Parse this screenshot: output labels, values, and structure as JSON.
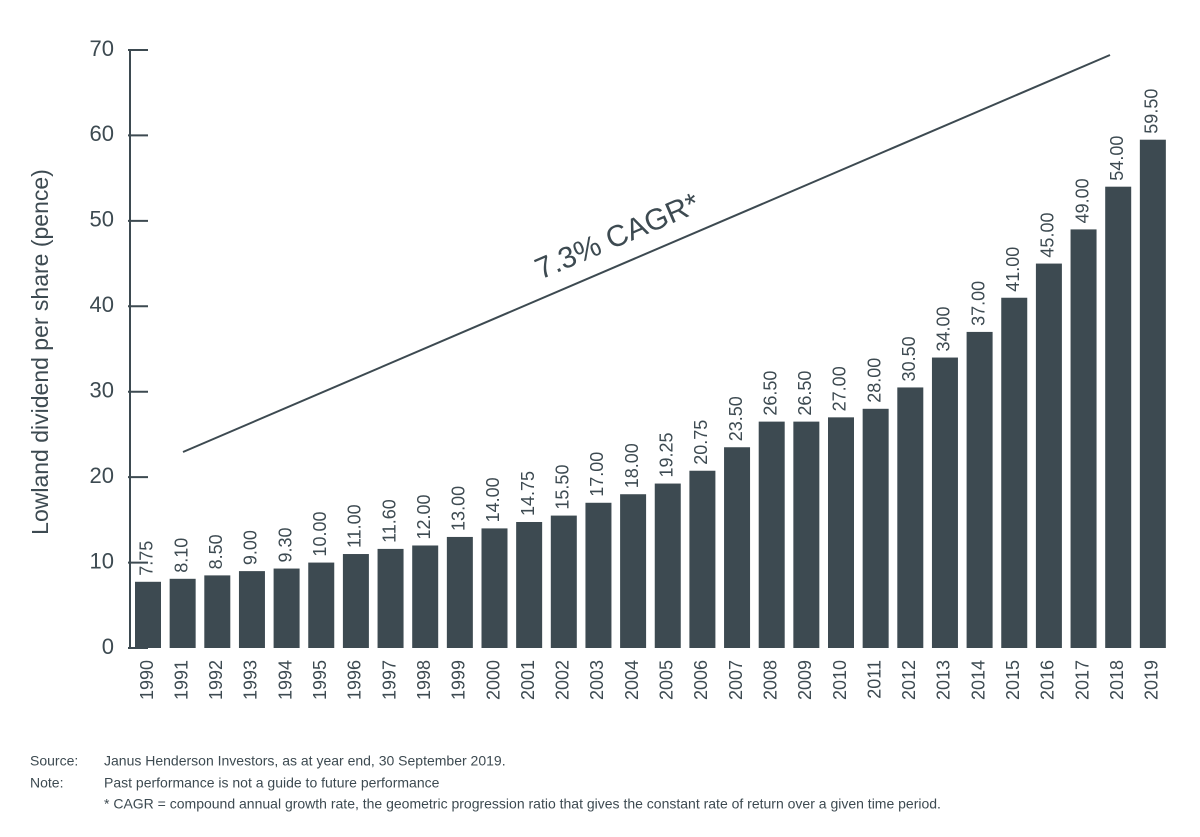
{
  "chart_data": {
    "type": "bar",
    "y_label": "Lowland dividend per share (pence)",
    "annotation": "7.3% CAGR*",
    "categories": [
      "1990",
      "1991",
      "1992",
      "1993",
      "1994",
      "1995",
      "1996",
      "1997",
      "1998",
      "1999",
      "2000",
      "2001",
      "2002",
      "2003",
      "2004",
      "2005",
      "2006",
      "2007",
      "2008",
      "2009",
      "2010",
      "2011",
      "2012",
      "2013",
      "2014",
      "2015",
      "2016",
      "2017",
      "2018",
      "2019"
    ],
    "values": [
      7.75,
      8.1,
      8.5,
      9,
      9.3,
      10,
      11,
      11.6,
      12,
      13,
      14,
      14.75,
      15.5,
      17,
      18,
      19.25,
      20.75,
      23.5,
      26.5,
      26.5,
      27,
      28,
      30.5,
      34,
      37,
      41,
      45,
      49,
      54,
      59.5
    ],
    "value_labels": [
      "7.75",
      "8.10",
      "8.50",
      "9.00",
      "9.30",
      "10.00",
      "11.00",
      "11.60",
      "12.00",
      "13.00",
      "14.00",
      "14.75",
      "15.50",
      "17.00",
      "18.00",
      "19.25",
      "20.75",
      "23.50",
      "26.50",
      "26.50",
      "27.00",
      "28.00",
      "30.50",
      "34.00",
      "37.00",
      "41.00",
      "45.00",
      "49.00",
      "54.00",
      "59.50"
    ],
    "color": "#3d4a51",
    "ylim": [
      0,
      70
    ],
    "yticks": [
      0,
      10,
      20,
      30,
      40,
      50,
      60,
      70
    ],
    "source_label": "Source:",
    "source": "Janus Henderson Investors, as at year end, 30 September 2019.",
    "note_label": "Note:",
    "note": "Past performance is not a guide to future performance",
    "footnote": "* CAGR = compound annual growth rate, the geometric progression ratio that gives the constant rate of return over a given time period."
  }
}
